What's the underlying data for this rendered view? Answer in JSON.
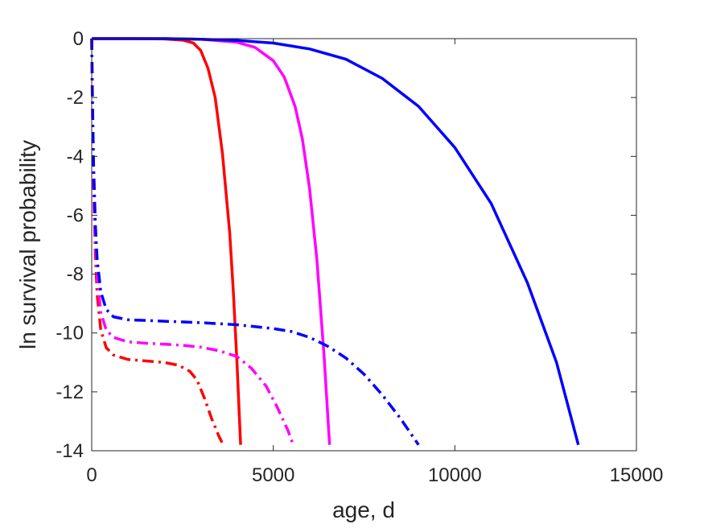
{
  "chart_data": {
    "type": "line",
    "xlabel": "age, d",
    "ylabel": "ln survival probability",
    "xlim": [
      0,
      15000
    ],
    "ylim": [
      -14,
      0
    ],
    "xticks": [
      0,
      5000,
      10000,
      15000
    ],
    "xtick_labels": [
      "0",
      "5000",
      "10000",
      "15000"
    ],
    "yticks": [
      0,
      -2,
      -4,
      -6,
      -8,
      -10,
      -12,
      -14
    ],
    "ytick_labels": [
      "0",
      "-2",
      "-4",
      "-6",
      "-8",
      "-10",
      "-12",
      "-14"
    ],
    "grid": false,
    "legend": "none",
    "series": [
      {
        "color": "#ff0000",
        "style": "solid",
        "x": [
          0,
          1000,
          2000,
          2500,
          2800,
          3000,
          3200,
          3400,
          3600,
          3800,
          3900,
          4000,
          4100
        ],
        "y": [
          0,
          0,
          -0.01,
          -0.05,
          -0.15,
          -0.4,
          -1.0,
          -2.0,
          -3.9,
          -6.6,
          -8.6,
          -11.0,
          -13.8
        ]
      },
      {
        "color": "#ff00ff",
        "style": "solid",
        "x": [
          0,
          2000,
          3000,
          4000,
          4500,
          5000,
          5300,
          5600,
          5800,
          6000,
          6200,
          6400,
          6550
        ],
        "y": [
          0,
          0,
          -0.02,
          -0.12,
          -0.3,
          -0.75,
          -1.3,
          -2.3,
          -3.4,
          -5.1,
          -7.5,
          -10.8,
          -13.8
        ]
      },
      {
        "color": "#0000ff",
        "style": "solid",
        "x": [
          0,
          2000,
          3000,
          4000,
          5000,
          6000,
          7000,
          8000,
          9000,
          10000,
          11000,
          12000,
          12800,
          13400
        ],
        "y": [
          0,
          0,
          -0.02,
          -0.06,
          -0.15,
          -0.35,
          -0.7,
          -1.35,
          -2.3,
          -3.7,
          -5.6,
          -8.3,
          -11.0,
          -13.8
        ]
      },
      {
        "color": "#ff0000",
        "style": "dashdot",
        "x": [
          0,
          20,
          50,
          100,
          150,
          250,
          400,
          600,
          1000,
          1500,
          2000,
          2400,
          2700,
          2900,
          3100,
          3300,
          3500,
          3620
        ],
        "y": [
          0,
          -2.5,
          -5.0,
          -7.3,
          -8.7,
          -9.9,
          -10.5,
          -10.75,
          -10.9,
          -10.95,
          -11.0,
          -11.1,
          -11.3,
          -11.6,
          -12.2,
          -12.9,
          -13.5,
          -13.8
        ]
      },
      {
        "color": "#ff00ff",
        "style": "dashdot",
        "x": [
          0,
          20,
          50,
          100,
          150,
          250,
          400,
          600,
          1000,
          1500,
          2000,
          2500,
          3000,
          3500,
          4000,
          4400,
          4800,
          5100,
          5400,
          5550
        ],
        "y": [
          0,
          -2.3,
          -4.6,
          -6.8,
          -8.1,
          -9.3,
          -9.9,
          -10.15,
          -10.3,
          -10.35,
          -10.38,
          -10.42,
          -10.48,
          -10.6,
          -10.8,
          -11.2,
          -11.8,
          -12.5,
          -13.3,
          -13.8
        ]
      },
      {
        "color": "#0000ff",
        "style": "dashdot",
        "x": [
          0,
          20,
          50,
          100,
          150,
          250,
          400,
          600,
          1000,
          2000,
          3000,
          4000,
          5000,
          5500,
          6000,
          6500,
          7000,
          7500,
          8000,
          8500,
          9000
        ],
        "y": [
          0,
          -2.0,
          -4.2,
          -6.3,
          -7.5,
          -8.6,
          -9.2,
          -9.45,
          -9.55,
          -9.6,
          -9.65,
          -9.72,
          -9.85,
          -9.95,
          -10.15,
          -10.45,
          -10.85,
          -11.4,
          -12.1,
          -12.9,
          -13.8
        ]
      }
    ]
  }
}
